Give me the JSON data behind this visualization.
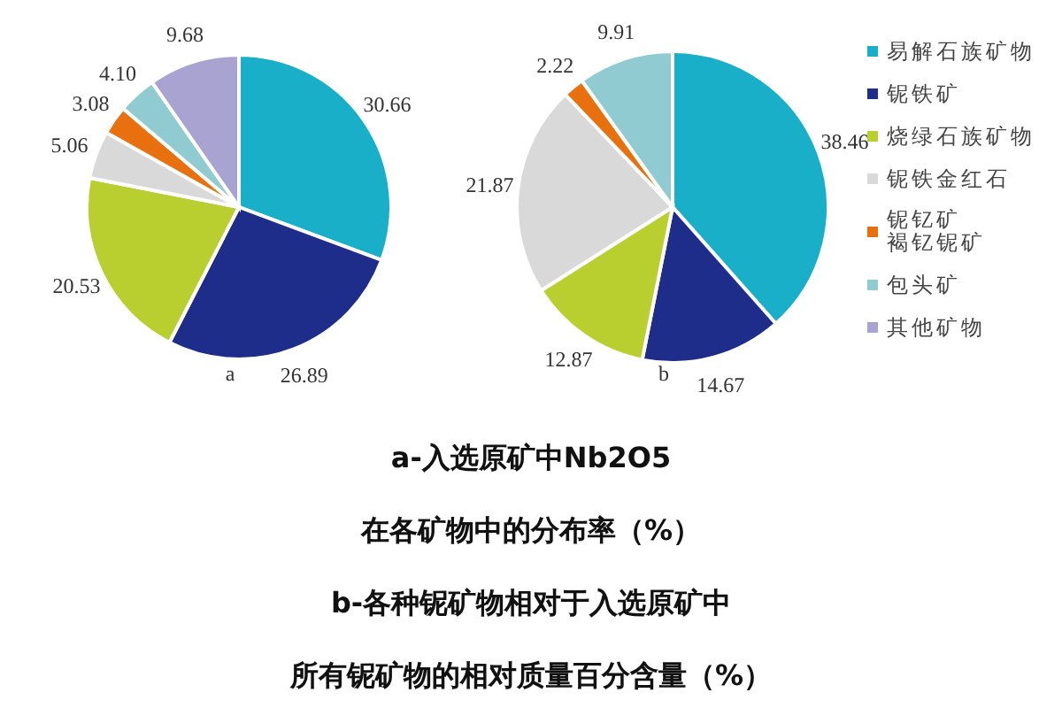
{
  "chart_data": [
    {
      "type": "pie",
      "subtitle": "a",
      "categories": [
        null,
        null,
        null,
        null,
        null,
        null,
        null
      ],
      "values": [
        30.66,
        26.89,
        20.53,
        5.06,
        3.08,
        4.1,
        9.68
      ],
      "value_labels": [
        "30.66",
        "26.89",
        "20.53",
        "5.06",
        "3.08",
        "4.10",
        "9.68"
      ],
      "colors": [
        "#1aafc8",
        "#1f2d8a",
        "#b9cf2f",
        "#d9d9d9",
        "#e8700f",
        "#8fcbd0",
        "#a9a3d2"
      ],
      "annotations": [
        "a-入选原矿中Nb2O5",
        "在各矿物中的分布率（%）",
        "b-各种铌矿物相对于入选原矿中",
        "所有铌矿物的相对质量百分含量（%）"
      ]
    },
    {
      "type": "pie",
      "subtitle": "b",
      "categories": [
        "易解石族矿物",
        "铌铁矿",
        "烧绿石族矿物",
        "铌铁金红石",
        "铌钇矿褐钇铌矿",
        "包头矿",
        "其他矿物"
      ],
      "values": [
        38.46,
        14.67,
        12.87,
        21.87,
        2.22,
        9.91,
        null
      ],
      "colors": [
        "#1aafc8",
        "#1f2d8a",
        "#b9cf2f",
        "#d9d9d9",
        "#e8700f",
        "#8fcbd0",
        "#a9a3d2"
      ],
      "data_labels": true,
      "legend": "right"
    }
  ]
}
